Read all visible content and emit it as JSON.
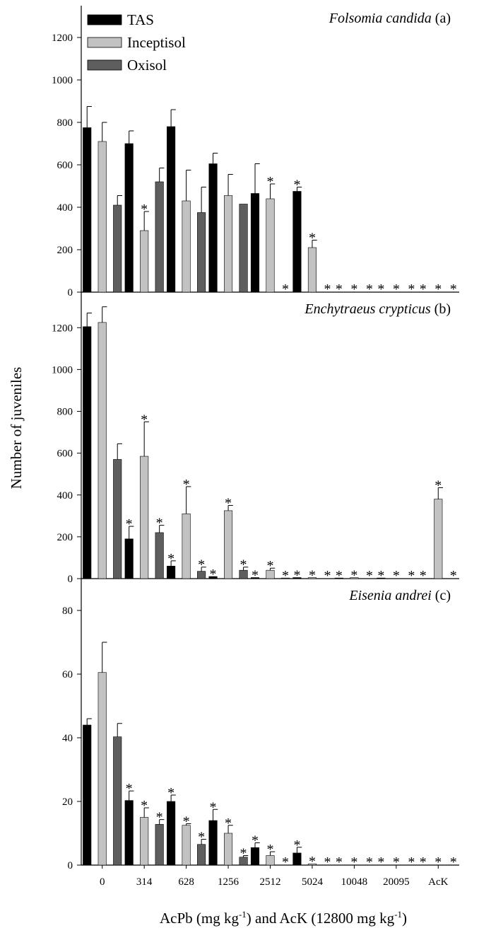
{
  "figure": {
    "ylabel": "Number of juveniles",
    "xlabel_main": "AcPb (mg kg",
    "xlabel_sup1": "-1",
    "xlabel_mid": ") and AcK (12800 mg kg",
    "xlabel_sup2": "-1",
    "xlabel_end": ")"
  },
  "legend": [
    {
      "label": "TAS",
      "color": "#000000"
    },
    {
      "label": "Inceptisol",
      "color": "#c2c2c2"
    },
    {
      "label": "Oxisol",
      "color": "#5e5e5e"
    }
  ],
  "chart_data": [
    {
      "type": "bar",
      "panel": "a",
      "title_species": "Folsomia candida",
      "title_suffix": " (a)",
      "categories": [
        "0",
        "314",
        "628",
        "1256",
        "2512",
        "5024",
        "10048",
        "20095",
        "AcK"
      ],
      "ylim": [
        0,
        1350
      ],
      "yticks": [
        0,
        200,
        400,
        600,
        800,
        1000,
        1200
      ],
      "ytick_labels": [
        "0",
        "200",
        "400",
        "600",
        "800",
        "1000",
        "1200"
      ],
      "series": [
        {
          "name": "TAS",
          "color": "#000000",
          "values": [
            775,
            700,
            780,
            605,
            465,
            475,
            0,
            0,
            0
          ],
          "errors": [
            100,
            60,
            80,
            50,
            140,
            20,
            0,
            0,
            0
          ],
          "sig": [
            false,
            false,
            false,
            false,
            false,
            true,
            true,
            true,
            true
          ]
        },
        {
          "name": "Inceptisol",
          "color": "#c2c2c2",
          "values": [
            710,
            290,
            430,
            455,
            440,
            210,
            0,
            0,
            0
          ],
          "errors": [
            90,
            90,
            145,
            100,
            70,
            35,
            0,
            0,
            0
          ],
          "sig": [
            false,
            true,
            false,
            false,
            true,
            true,
            true,
            true,
            true
          ]
        },
        {
          "name": "Oxisol",
          "color": "#5e5e5e",
          "values": [
            410,
            520,
            375,
            415,
            0,
            0,
            0,
            0,
            0
          ],
          "errors": [
            45,
            65,
            120,
            0,
            0,
            0,
            0,
            0,
            0
          ],
          "sig": [
            false,
            false,
            false,
            false,
            true,
            true,
            true,
            true,
            true
          ]
        }
      ]
    },
    {
      "type": "bar",
      "panel": "b",
      "title_species": "Enchytraeus crypticus",
      "title_suffix": " (b)",
      "categories": [
        "0",
        "314",
        "628",
        "1256",
        "2512",
        "5024",
        "10048",
        "20095",
        "AcK"
      ],
      "ylim": [
        0,
        1370
      ],
      "yticks": [
        0,
        200,
        400,
        600,
        800,
        1000,
        1200
      ],
      "ytick_labels": [
        "0",
        "200",
        "400",
        "600",
        "800",
        "1000",
        "1200"
      ],
      "series": [
        {
          "name": "TAS",
          "color": "#000000",
          "values": [
            1205,
            190,
            60,
            10,
            5,
            5,
            3,
            3,
            0
          ],
          "errors": [
            65,
            60,
            25,
            0,
            0,
            0,
            0,
            0,
            0
          ],
          "sig": [
            false,
            true,
            true,
            true,
            true,
            true,
            true,
            true,
            true
          ]
        },
        {
          "name": "Inceptisol",
          "color": "#c2c2c2",
          "values": [
            1225,
            585,
            310,
            325,
            40,
            5,
            5,
            0,
            380
          ],
          "errors": [
            75,
            165,
            130,
            25,
            10,
            0,
            0,
            0,
            55
          ],
          "sig": [
            false,
            true,
            true,
            true,
            true,
            true,
            true,
            true,
            true
          ]
        },
        {
          "name": "Oxisol",
          "color": "#5e5e5e",
          "values": [
            570,
            220,
            35,
            40,
            3,
            0,
            0,
            0,
            0
          ],
          "errors": [
            75,
            35,
            20,
            15,
            0,
            0,
            0,
            0,
            0
          ],
          "sig": [
            false,
            true,
            true,
            true,
            true,
            true,
            true,
            true,
            true
          ]
        }
      ]
    },
    {
      "type": "bar",
      "panel": "c",
      "title_species": "Eisenia andrei",
      "title_suffix": " (c)",
      "categories": [
        "0",
        "314",
        "628",
        "1256",
        "2512",
        "5024",
        "10048",
        "20095",
        "AcK"
      ],
      "ylim": [
        0,
        90
      ],
      "yticks": [
        0,
        20,
        40,
        60,
        80
      ],
      "ytick_labels": [
        "0",
        "20",
        "40",
        "60",
        "80"
      ],
      "series": [
        {
          "name": "TAS",
          "color": "#000000",
          "values": [
            44,
            20.3,
            20,
            14,
            5.5,
            3.8,
            0,
            0,
            0
          ],
          "errors": [
            2,
            3,
            2,
            3.5,
            1.5,
            1.8,
            0,
            0,
            0
          ],
          "sig": [
            false,
            true,
            true,
            true,
            true,
            true,
            true,
            true,
            true
          ]
        },
        {
          "name": "Inceptisol",
          "color": "#c2c2c2",
          "values": [
            60.5,
            15,
            12.5,
            10,
            3,
            0.4,
            0,
            0,
            0
          ],
          "errors": [
            9.5,
            3,
            0.5,
            2.5,
            1.2,
            0,
            0,
            0,
            0
          ],
          "sig": [
            false,
            true,
            true,
            true,
            true,
            true,
            true,
            true,
            true
          ]
        },
        {
          "name": "Oxisol",
          "color": "#5e5e5e",
          "values": [
            40.3,
            12.8,
            6.5,
            2.5,
            0,
            0,
            0,
            0,
            0
          ],
          "errors": [
            4.2,
            1.5,
            1.6,
            0.5,
            0,
            0,
            0,
            0,
            0
          ],
          "sig": [
            false,
            true,
            true,
            true,
            true,
            true,
            true,
            true,
            true
          ]
        }
      ]
    }
  ]
}
